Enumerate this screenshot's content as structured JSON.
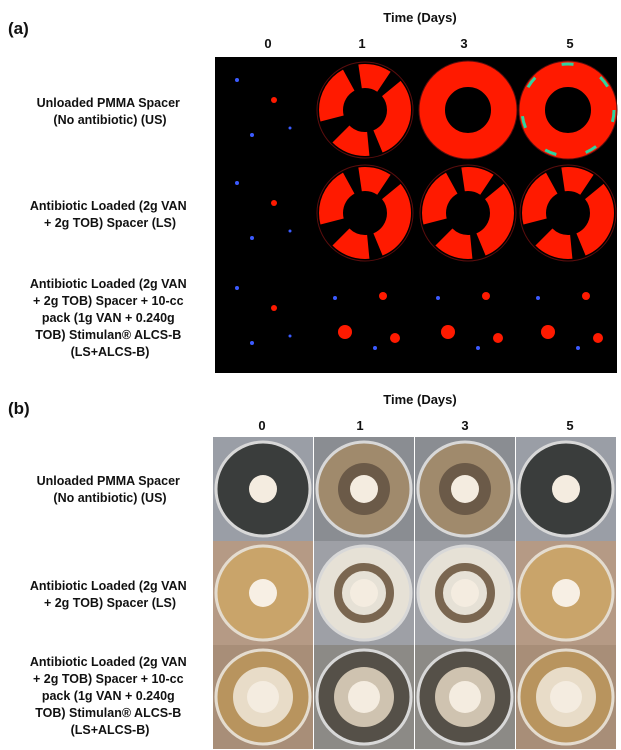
{
  "panels": [
    {
      "label": "(a)",
      "axis_title": "Time (Days)",
      "columns": [
        "0",
        "1",
        "3",
        "5"
      ],
      "rows": [
        [
          "Unloaded PMMA Spacer",
          "(No antibiotic) (US)"
        ],
        [
          "Antibiotic Loaded (2g VAN",
          "+ 2g TOB) Spacer (LS)"
        ],
        [
          "Antibiotic Loaded (2g VAN",
          "+ 2g TOB) Spacer + 10-cc",
          "pack (1g VAN + 0.240g",
          "TOB) Stimulan® ALCS-B",
          "(LS+ALCS-B)"
        ]
      ]
    },
    {
      "label": "(b)",
      "axis_title": "Time (Days)",
      "columns": [
        "0",
        "1",
        "3",
        "5"
      ],
      "rows": [
        [
          "Unloaded PMMA Spacer",
          "(No antibiotic) (US)"
        ],
        [
          "Antibiotic Loaded (2g VAN",
          "+ 2g TOB) Spacer (LS)"
        ],
        [
          "Antibiotic Loaded (2g VAN",
          "+ 2g TOB) Spacer + 10-cc",
          "pack (1g VAN + 0.240g",
          "TOB) Stimulan® ALCS-B",
          "(LS+ALCS-B)"
        ]
      ]
    }
  ]
}
